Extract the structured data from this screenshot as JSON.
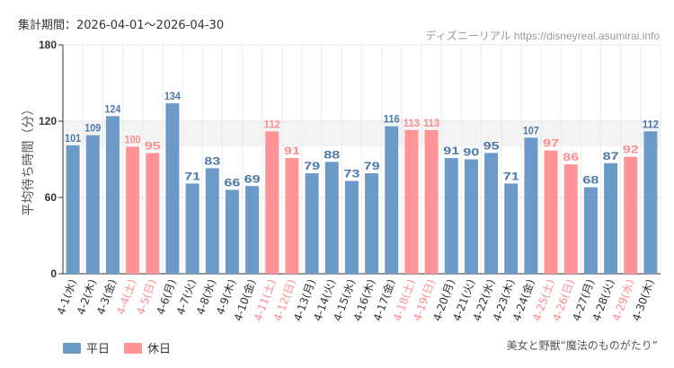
{
  "header": {
    "period": "集計期間：2026-04-01～2026-04-30",
    "credit": "ディズニーリアル https://disneyreal.asumirai.info"
  },
  "attraction": "美女と野獣“魔法のものがたり”",
  "legend": [
    {
      "label": "平日",
      "color": "#6b9ac8"
    },
    {
      "label": "休日",
      "color": "#ff9396"
    }
  ],
  "chart_data": {
    "type": "bar",
    "ylabel": "平均待ち時間（分）",
    "ylim": [
      0,
      180
    ],
    "yticks": [
      0,
      60,
      120,
      180
    ],
    "grid": true,
    "legend_placement": "bottom-left",
    "colors": {
      "weekday": "#6b9ac8",
      "holiday": "#ff9396",
      "holiday_label": "#ff8a8e"
    },
    "categories": [
      "4-1(水)",
      "4-2(木)",
      "4-3(金)",
      "4-4(土)",
      "4-5(日)",
      "4-6(月)",
      "4-7(火)",
      "4-8(水)",
      "4-9(木)",
      "4-10(金)",
      "4-11(土)",
      "4-12(日)",
      "4-13(月)",
      "4-14(火)",
      "4-15(水)",
      "4-16(木)",
      "4-17(金)",
      "4-18(土)",
      "4-19(日)",
      "4-20(月)",
      "4-21(火)",
      "4-22(水)",
      "4-23(木)",
      "4-24(金)",
      "4-25(土)",
      "4-26(日)",
      "4-27(月)",
      "4-28(火)",
      "4-29(水)",
      "4-30(木)"
    ],
    "values": [
      101,
      109,
      124,
      100,
      95,
      134,
      71,
      83,
      66,
      69,
      112,
      91,
      79,
      88,
      73,
      79,
      116,
      113,
      113,
      91,
      90,
      95,
      71,
      107,
      97,
      86,
      68,
      87,
      92,
      112
    ],
    "holiday": [
      false,
      false,
      false,
      true,
      true,
      false,
      false,
      false,
      false,
      false,
      true,
      true,
      false,
      false,
      false,
      false,
      false,
      true,
      true,
      false,
      false,
      false,
      false,
      false,
      true,
      true,
      false,
      false,
      true,
      false
    ]
  }
}
